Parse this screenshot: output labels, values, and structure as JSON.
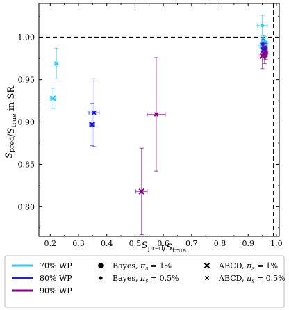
{
  "chart_data": {
    "type": "scatter",
    "xlabel": "S_pred/S_true",
    "ylabel": "S_pred/S_true in SR",
    "xlim": [
      0.16,
      1.01
    ],
    "ylim": [
      0.765,
      1.04
    ],
    "xticks": [
      "0.2",
      "0.3",
      "0.4",
      "0.5",
      "0.6",
      "0.7",
      "0.8",
      "0.9",
      "1.0"
    ],
    "yticks": [
      "0.80",
      "0.85",
      "0.90",
      "0.95",
      "1.00"
    ],
    "reference_lines": [
      {
        "orientation": "horizontal",
        "value": 1.0,
        "style": "dashed"
      },
      {
        "orientation": "vertical",
        "value": 0.99,
        "style": "dashed"
      }
    ],
    "grid": false,
    "legend_position": "bottom",
    "colors": {
      "70% WP": "#33c9f3",
      "80% WP": "#1f1fd6",
      "90% WP": "#800080"
    },
    "series": [
      {
        "wp": "70% WP",
        "method": "ABCD",
        "pi": "1%",
        "marker": "x",
        "size": "large",
        "points": [
          {
            "x": 0.21,
            "y": 0.928,
            "xerr": 0.01,
            "yerr": 0.012
          },
          {
            "x": 0.95,
            "y": 0.99,
            "xerr": 0.015,
            "yerr": 0.01
          }
        ]
      },
      {
        "wp": "70% WP",
        "method": "ABCD",
        "pi": "0.5%",
        "marker": "x",
        "size": "small",
        "points": [
          {
            "x": 0.222,
            "y": 0.969,
            "xerr": 0.006,
            "yerr": 0.018
          },
          {
            "x": 0.96,
            "y": 0.993,
            "xerr": 0.01,
            "yerr": 0.008
          }
        ]
      },
      {
        "wp": "70% WP",
        "method": "Bayes",
        "pi": "1%",
        "marker": "o",
        "size": "large",
        "points": [
          {
            "x": 0.955,
            "y": 0.995,
            "xerr": 0.01,
            "yerr": 0.007
          }
        ]
      },
      {
        "wp": "70% WP",
        "method": "Bayes",
        "pi": "0.5%",
        "marker": "o",
        "size": "small",
        "points": [
          {
            "x": 0.95,
            "y": 1.014,
            "xerr": 0.018,
            "yerr": 0.012
          }
        ]
      },
      {
        "wp": "80% WP",
        "method": "ABCD",
        "pi": "1%",
        "marker": "x",
        "size": "large",
        "points": [
          {
            "x": 0.348,
            "y": 0.897,
            "xerr": 0.009,
            "yerr": 0.025
          },
          {
            "x": 0.955,
            "y": 0.985,
            "xerr": 0.01,
            "yerr": 0.008
          }
        ]
      },
      {
        "wp": "80% WP",
        "method": "ABCD",
        "pi": "0.5%",
        "marker": "x",
        "size": "small",
        "points": [
          {
            "x": 0.355,
            "y": 0.911,
            "xerr": 0.018,
            "yerr": 0.04
          }
        ]
      },
      {
        "wp": "80% WP",
        "method": "Bayes",
        "pi": "1%",
        "marker": "o",
        "size": "large",
        "points": [
          {
            "x": 0.96,
            "y": 0.987,
            "xerr": 0.008,
            "yerr": 0.006
          }
        ]
      },
      {
        "wp": "80% WP",
        "method": "Bayes",
        "pi": "0.5%",
        "marker": "o",
        "size": "small",
        "points": [
          {
            "x": 0.952,
            "y": 0.992,
            "xerr": 0.008,
            "yerr": 0.006
          }
        ]
      },
      {
        "wp": "90% WP",
        "method": "ABCD",
        "pi": "1%",
        "marker": "x",
        "size": "large",
        "points": [
          {
            "x": 0.523,
            "y": 0.818,
            "xerr": 0.02,
            "yerr": 0.051
          },
          {
            "x": 0.95,
            "y": 0.978,
            "xerr": 0.015,
            "yerr": 0.015
          }
        ]
      },
      {
        "wp": "90% WP",
        "method": "ABCD",
        "pi": "0.5%",
        "marker": "x",
        "size": "small",
        "points": [
          {
            "x": 0.575,
            "y": 0.909,
            "xerr": 0.032,
            "yerr": 0.067
          }
        ]
      },
      {
        "wp": "90% WP",
        "method": "Bayes",
        "pi": "1%",
        "marker": "o",
        "size": "large",
        "points": [
          {
            "x": 0.958,
            "y": 0.979,
            "xerr": 0.01,
            "yerr": 0.01
          }
        ]
      },
      {
        "wp": "90% WP",
        "method": "Bayes",
        "pi": "0.5%",
        "marker": "o",
        "size": "small",
        "points": [
          {
            "x": 0.962,
            "y": 0.982,
            "xerr": 0.008,
            "yerr": 0.008
          }
        ]
      }
    ],
    "legend": {
      "colors": [
        {
          "label": "70% WP",
          "color": "#33c9f3"
        },
        {
          "label": "80% WP",
          "color": "#1f1fd6"
        },
        {
          "label": "90% WP",
          "color": "#800080"
        }
      ],
      "markers": [
        {
          "label": "Bayes, π_s = 1%",
          "marker": "o",
          "size": "large"
        },
        {
          "label": "Bayes, π_s = 0.5%",
          "marker": "o",
          "size": "small"
        },
        {
          "label": "ABCD, π_s = 1%",
          "marker": "x",
          "size": "large"
        },
        {
          "label": "ABCD, π_s = 0.5%",
          "marker": "x",
          "size": "small"
        }
      ]
    }
  }
}
